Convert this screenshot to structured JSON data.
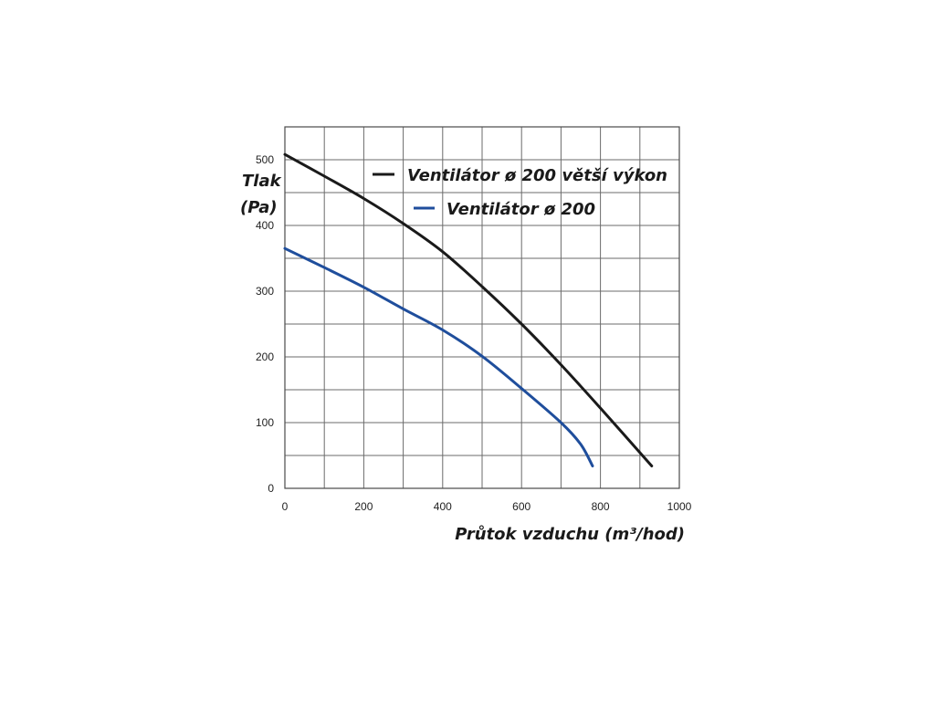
{
  "chart_data": {
    "type": "line",
    "xlabel": "Průtok vzduchu (m³/hod)",
    "ylabel_line1": "Tlak",
    "ylabel_line2": "(Pa)",
    "xlim": [
      0,
      1000
    ],
    "ylim": [
      0,
      550
    ],
    "xticks": [
      0,
      200,
      400,
      600,
      800,
      1000
    ],
    "yticks": [
      0,
      100,
      200,
      300,
      400,
      500
    ],
    "x_grid_step": 100,
    "y_grid_step": 50,
    "grid": true,
    "legend_position": "top-right",
    "series": [
      {
        "name": "Ventilátor ø 200 větší výkon",
        "color": "#1a1a1a",
        "points": [
          [
            0,
            508
          ],
          [
            100,
            475
          ],
          [
            200,
            441
          ],
          [
            300,
            403
          ],
          [
            400,
            360
          ],
          [
            500,
            307
          ],
          [
            600,
            250
          ],
          [
            700,
            188
          ],
          [
            800,
            122
          ],
          [
            930,
            34
          ]
        ]
      },
      {
        "name": "Ventilátor ø 200",
        "color": "#1f4e9c",
        "points": [
          [
            0,
            365
          ],
          [
            100,
            336
          ],
          [
            200,
            306
          ],
          [
            300,
            273
          ],
          [
            400,
            241
          ],
          [
            500,
            201
          ],
          [
            600,
            152
          ],
          [
            700,
            100
          ],
          [
            750,
            67
          ],
          [
            780,
            34
          ]
        ]
      }
    ]
  }
}
